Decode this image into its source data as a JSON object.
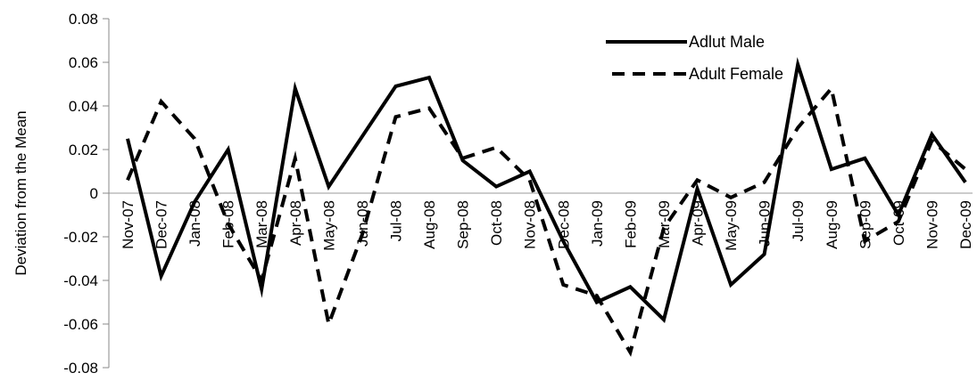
{
  "chart_data": {
    "type": "line",
    "title": "",
    "xlabel": "",
    "ylabel": "Deviation from the Mean",
    "ylim": [
      -0.08,
      0.08
    ],
    "yticks": [
      "0.08",
      "0.06",
      "0.04",
      "0.02",
      "0",
      "-0.02",
      "-0.04",
      "-0.06",
      "-0.08"
    ],
    "ytick_values": [
      0.08,
      0.06,
      0.04,
      0.02,
      0,
      -0.02,
      -0.04,
      -0.06,
      -0.08
    ],
    "grid": false,
    "legend_position": "top-right",
    "categories": [
      "Nov-07",
      "Dec-07",
      "Jan-08",
      "Feb-08",
      "Mar-08",
      "Apr-08",
      "May-08",
      "Jun-08",
      "Jul-08",
      "Aug-08",
      "Sep-08",
      "Oct-08",
      "Nov-08",
      "Dec-08",
      "Jan-09",
      "Feb-09",
      "Mar-09",
      "Apr-09",
      "May-09",
      "Jun-09",
      "Jul-09",
      "Aug-09",
      "Sep-09",
      "Oct-09",
      "Nov-09",
      "Dec-09"
    ],
    "series": [
      {
        "name": "Adlut Male",
        "style": "solid",
        "color": "#000000",
        "values": [
          0.025,
          -0.038,
          -0.004,
          0.02,
          -0.044,
          0.048,
          0.003,
          0.026,
          0.049,
          0.053,
          0.015,
          0.003,
          0.01,
          -0.022,
          -0.05,
          -0.043,
          -0.058,
          0.002,
          -0.042,
          -0.028,
          0.059,
          0.011,
          0.016,
          -0.01,
          0.027,
          0.005
        ]
      },
      {
        "name": "Adult Female",
        "style": "dashed",
        "color": "#000000",
        "values": [
          0.006,
          0.042,
          0.025,
          -0.014,
          -0.04,
          0.016,
          -0.06,
          -0.019,
          0.035,
          0.039,
          0.016,
          0.021,
          0.006,
          -0.042,
          -0.047,
          -0.073,
          -0.016,
          0.006,
          -0.002,
          0.005,
          0.03,
          0.048,
          -0.022,
          -0.013,
          0.024,
          0.011
        ]
      }
    ]
  }
}
